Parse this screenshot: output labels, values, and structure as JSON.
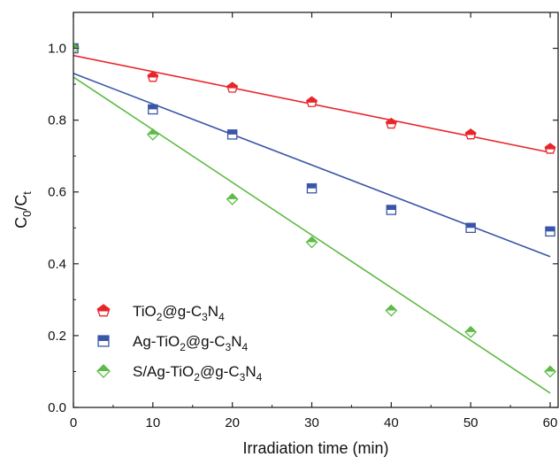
{
  "chart_data": {
    "type": "scatter",
    "xlabel": "Irradiation time (min)",
    "ylabel": {
      "base": "C",
      "sub0": "0",
      "slash": "/C",
      "sub1": "t"
    },
    "xlim": [
      0,
      61
    ],
    "ylim": [
      0,
      1.1
    ],
    "xticks": [
      0,
      10,
      20,
      30,
      40,
      50,
      60
    ],
    "xtick_labels": [
      "0",
      "10",
      "20",
      "30",
      "40",
      "50",
      "60"
    ],
    "yticks": [
      0.0,
      0.2,
      0.4,
      0.6,
      0.8,
      1.0
    ],
    "ytick_labels": [
      "0.0",
      "0.2",
      "0.4",
      "0.6",
      "0.8",
      "1.0"
    ],
    "grid": false,
    "legend_position": "bottom-left",
    "x": [
      0,
      10,
      20,
      30,
      40,
      50,
      60
    ],
    "series": [
      {
        "marker": "pentagon",
        "color": "#e8262a",
        "values": [
          1.0,
          0.92,
          0.89,
          0.85,
          0.79,
          0.76,
          0.72
        ],
        "fit_line": {
          "start": 0.98,
          "end": 0.71
        },
        "legend_parts": [
          {
            "t": "TiO",
            "sub": false
          },
          {
            "t": "2",
            "sub": true
          },
          {
            "t": "@g-C",
            "sub": false
          },
          {
            "t": "3",
            "sub": true
          },
          {
            "t": "N",
            "sub": false
          },
          {
            "t": "4",
            "sub": true
          }
        ]
      },
      {
        "marker": "square",
        "color": "#3a56a8",
        "values": [
          1.0,
          0.83,
          0.76,
          0.61,
          0.55,
          0.5,
          0.49
        ],
        "fit_line": {
          "start": 0.93,
          "end": 0.42
        },
        "legend_parts": [
          {
            "t": "Ag-TiO",
            "sub": false
          },
          {
            "t": "2",
            "sub": true
          },
          {
            "t": "@g-C",
            "sub": false
          },
          {
            "t": "3",
            "sub": true
          },
          {
            "t": "N",
            "sub": false
          },
          {
            "t": "4",
            "sub": true
          }
        ]
      },
      {
        "marker": "diamond",
        "color": "#5dbb46",
        "values": [
          1.0,
          0.76,
          0.58,
          0.46,
          0.27,
          0.21,
          0.1
        ],
        "fit_line": {
          "start": 0.92,
          "end": 0.04
        },
        "legend_parts": [
          {
            "t": "S/Ag-TiO",
            "sub": false
          },
          {
            "t": "2",
            "sub": true
          },
          {
            "t": "@g-C",
            "sub": false
          },
          {
            "t": "3",
            "sub": true
          },
          {
            "t": "N",
            "sub": false
          },
          {
            "t": "4",
            "sub": true
          }
        ]
      }
    ]
  }
}
